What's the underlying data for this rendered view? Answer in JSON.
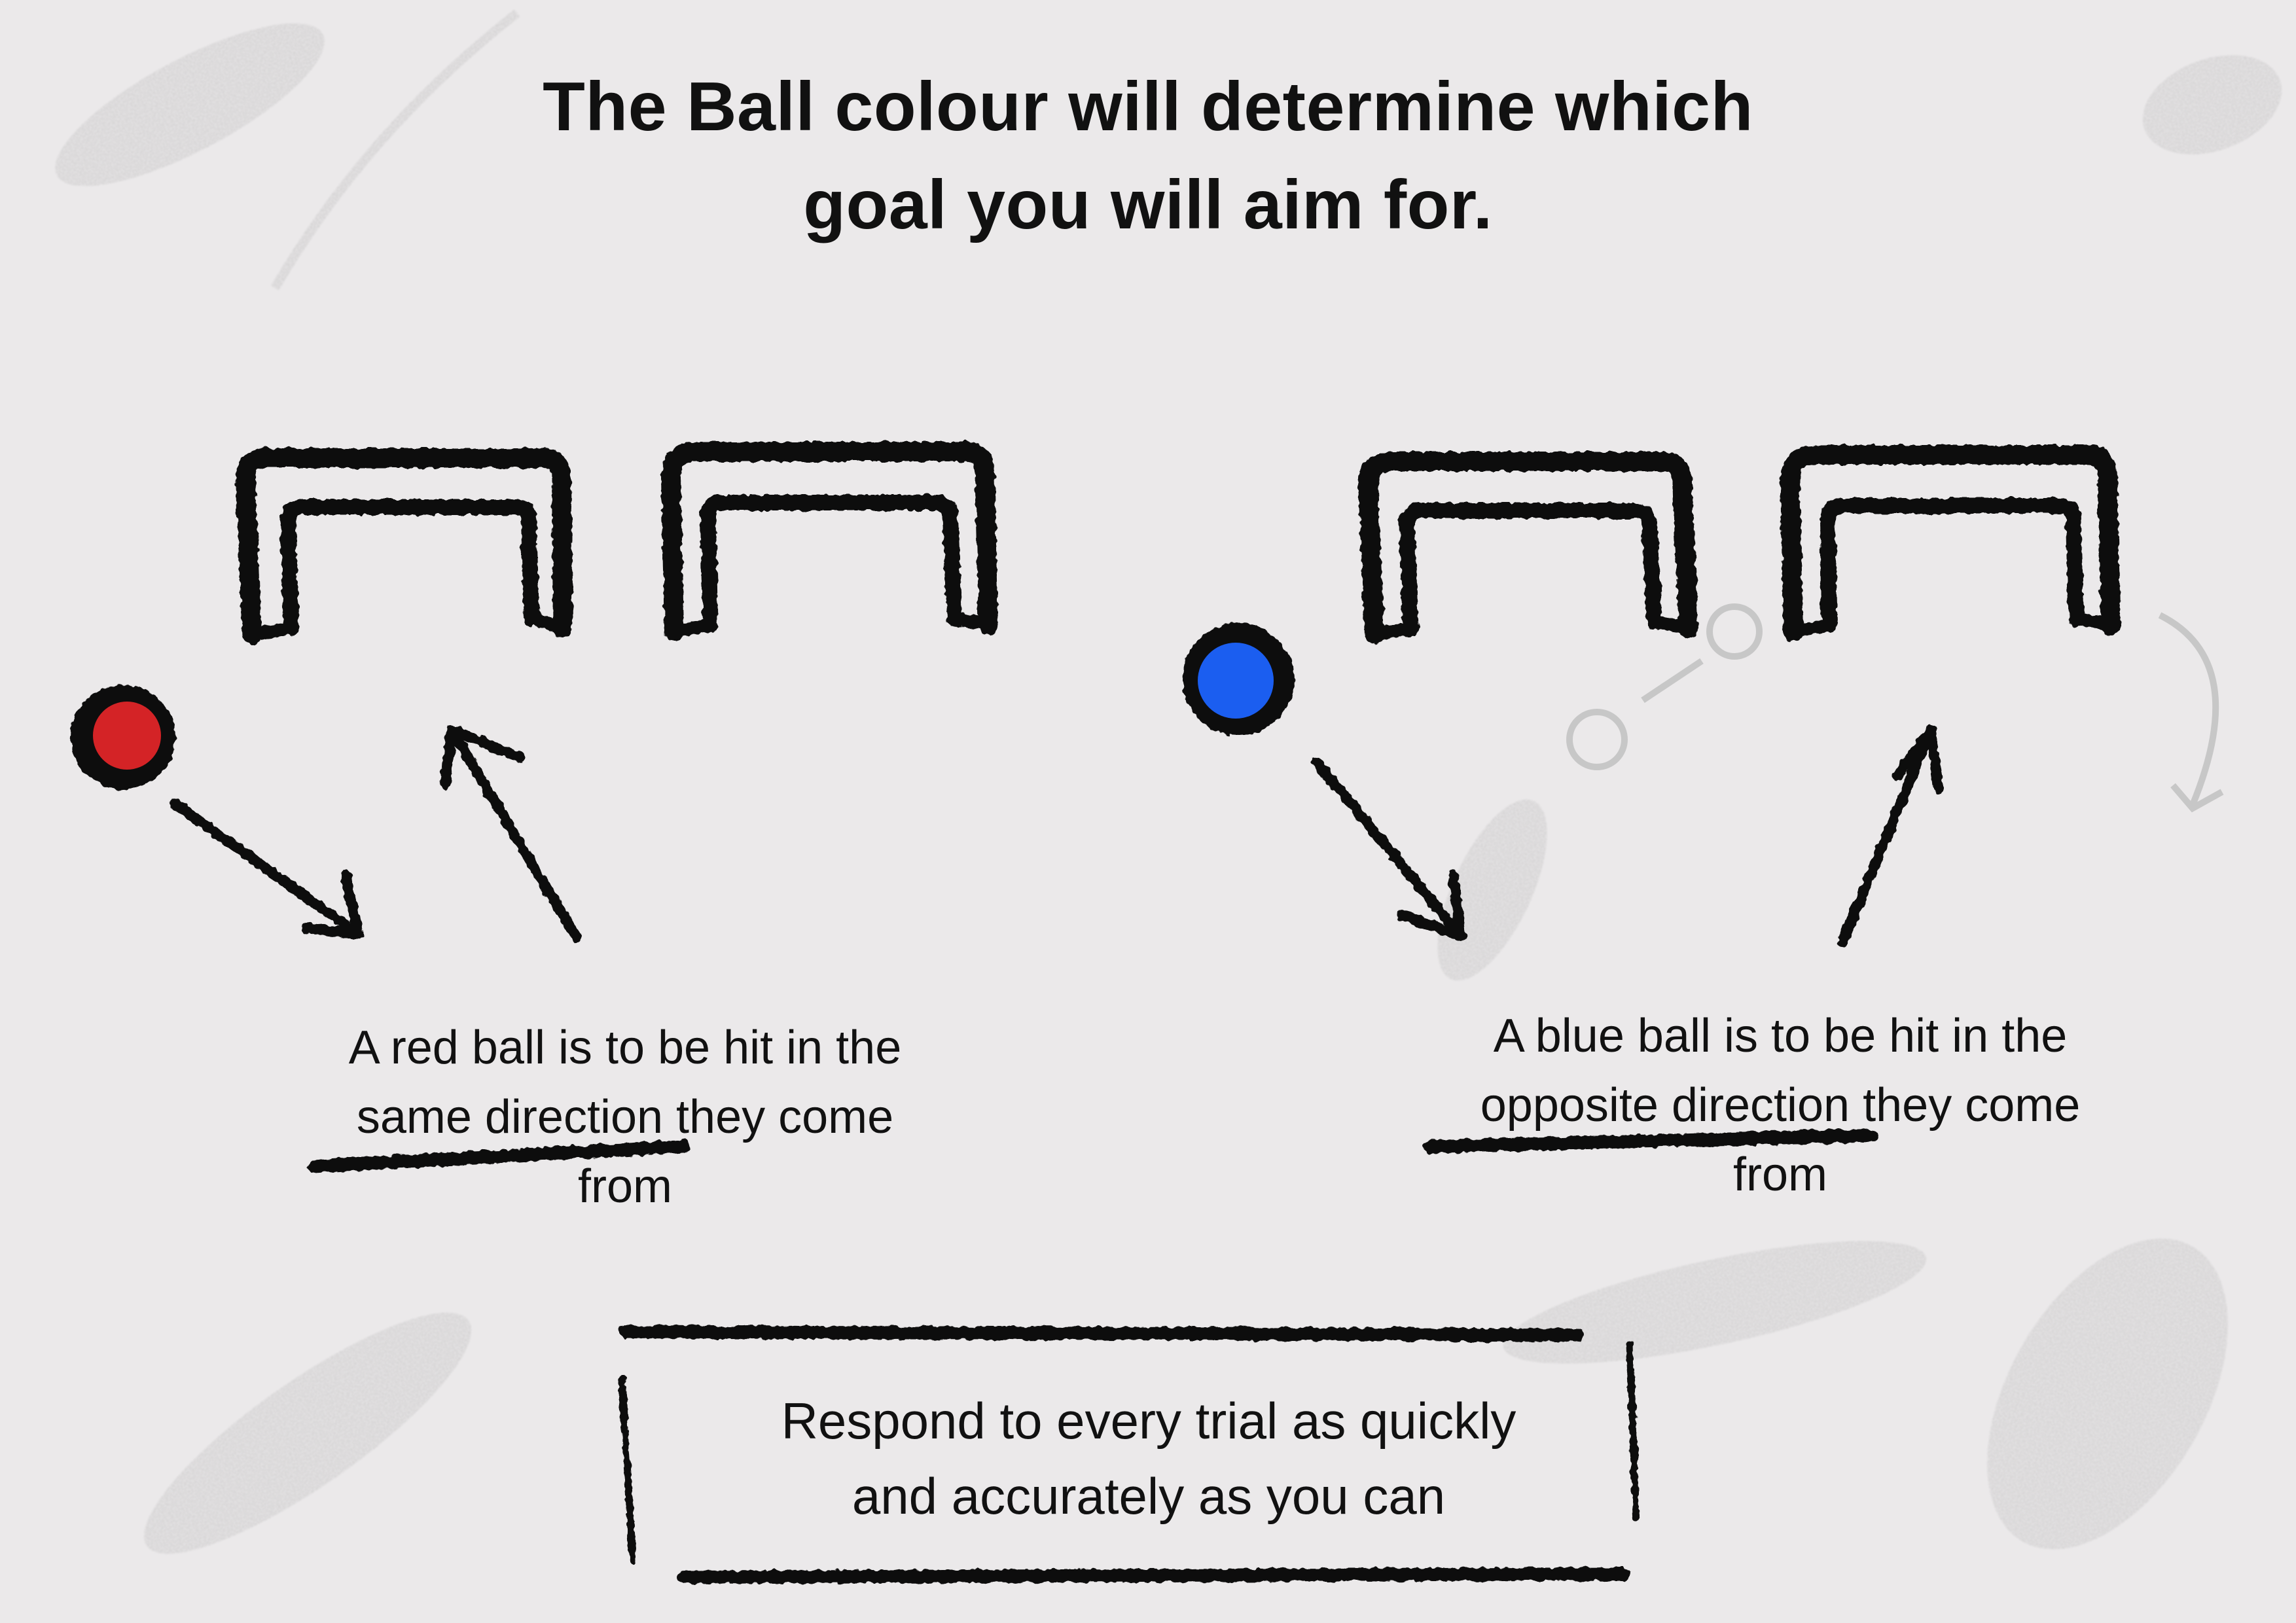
{
  "title": {
    "line1": "The Ball colour will determine which",
    "line2": "goal you will aim for."
  },
  "red_panel": {
    "ball_color": "#d42326",
    "caption_line1": "A red ball is to be hit in the",
    "caption_line2": "same direction they come",
    "caption_line3": "from"
  },
  "blue_panel": {
    "ball_color": "#1b5ef0",
    "caption_line1": "A blue ball is to be hit in the",
    "caption_line2": "opposite direction they come",
    "caption_line3": "from"
  },
  "instruction_box": {
    "line1": "Respond to every trial as quickly",
    "line2": "and accurately as you can"
  },
  "colors": {
    "background": "#ebe9ea",
    "ink": "#111111",
    "smudge": "#9a9a9a"
  }
}
